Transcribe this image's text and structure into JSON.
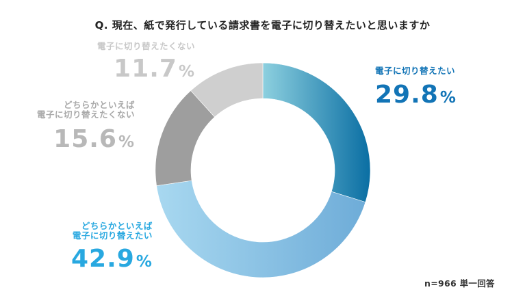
{
  "chart_data": {
    "type": "pie",
    "title": "Q. 現在、紙で発行している請求書を電子に切り替えたいと思いますか",
    "unit": "%",
    "slices": [
      {
        "label_lines": [
          "電子に切り替えたい"
        ],
        "value": 29.8,
        "value_text": "29.8",
        "color_start": "#8dd0df",
        "color_end": "#0a6ea3"
      },
      {
        "label_lines": [
          "どちらかといえば",
          "電子に切り替えたい"
        ],
        "value": 42.9,
        "value_text": "42.9",
        "color_start": "#a8d8f0",
        "color_end": "#6eacd8"
      },
      {
        "label_lines": [
          "どちらかといえば",
          "電子に切り替えたくない"
        ],
        "value": 15.6,
        "value_text": "15.6",
        "color_start": "#9e9e9e",
        "color_end": "#9e9e9e"
      },
      {
        "label_lines": [
          "電子に切り替えたくない"
        ],
        "value": 11.7,
        "value_text": "11.7",
        "color_start": "#cfcfcf",
        "color_end": "#cfcfcf"
      }
    ],
    "label_colors": [
      "#1274b6",
      "#28a8e0",
      "#a9a9a9",
      "#c8c8c8"
    ],
    "start": "top",
    "direction": "clockwise"
  },
  "footnote": "n=966 単一回答"
}
